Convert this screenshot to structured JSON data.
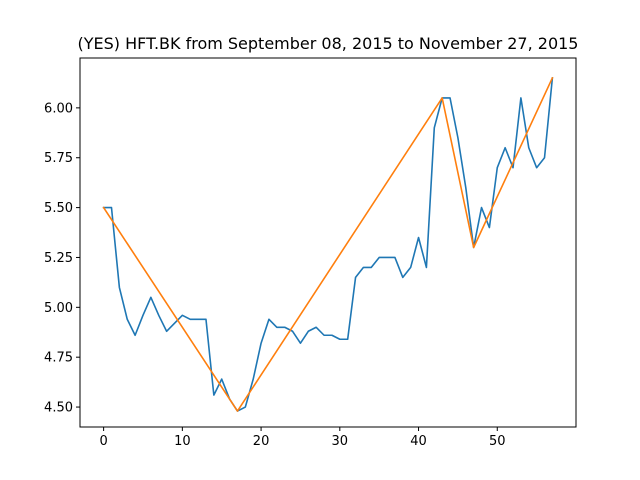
{
  "chart_data": {
    "type": "line",
    "title": "(YES) HFT.BK from September 08, 2015 to November 27, 2015",
    "xlabel": "",
    "ylabel": "",
    "xlim": [
      -3,
      60
    ],
    "ylim": [
      4.4,
      6.25
    ],
    "xticks": [
      0,
      10,
      20,
      30,
      40,
      50
    ],
    "xtick_labels": [
      "0",
      "10",
      "20",
      "30",
      "40",
      "50"
    ],
    "yticks": [
      4.5,
      4.75,
      5.0,
      5.25,
      5.5,
      5.75,
      6.0
    ],
    "ytick_labels": [
      "4.50",
      "4.75",
      "5.00",
      "5.25",
      "5.50",
      "5.75",
      "6.00"
    ],
    "grid": false,
    "series": [
      {
        "color": "#1f77b4",
        "x": [
          0,
          1,
          2,
          3,
          4,
          5,
          6,
          7,
          8,
          9,
          10,
          11,
          12,
          13,
          14,
          15,
          16,
          17,
          18,
          19,
          20,
          21,
          22,
          23,
          24,
          25,
          26,
          27,
          28,
          29,
          30,
          31,
          32,
          33,
          34,
          35,
          36,
          37,
          38,
          39,
          40,
          41,
          42,
          43,
          44,
          45,
          46,
          47,
          48,
          49,
          50,
          51,
          52,
          53,
          54,
          55,
          56,
          57
        ],
        "y": [
          5.5,
          5.5,
          5.1,
          4.94,
          4.86,
          4.96,
          5.05,
          4.96,
          4.88,
          4.92,
          4.96,
          4.94,
          4.94,
          4.94,
          4.56,
          4.64,
          4.54,
          4.48,
          4.5,
          4.64,
          4.82,
          4.94,
          4.9,
          4.9,
          4.88,
          4.82,
          4.88,
          4.9,
          4.86,
          4.86,
          4.84,
          4.84,
          5.15,
          5.2,
          5.2,
          5.25,
          5.25,
          5.25,
          5.15,
          5.2,
          5.35,
          5.2,
          5.9,
          6.05,
          6.05,
          5.85,
          5.6,
          5.3,
          5.5,
          5.4,
          5.7,
          5.8,
          5.7,
          6.05,
          5.8,
          5.7,
          5.75,
          6.15
        ]
      },
      {
        "color": "#ff7f0e",
        "x": [
          0,
          17,
          43,
          47,
          57
        ],
        "y": [
          5.5,
          4.48,
          6.05,
          5.3,
          6.15
        ]
      }
    ]
  }
}
